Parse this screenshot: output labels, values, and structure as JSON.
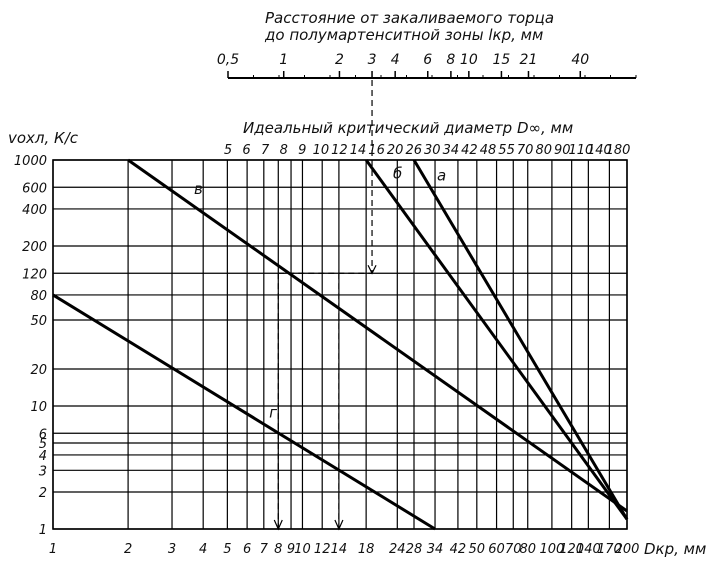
{
  "chart_data": {
    "type": "line",
    "top_scale_title_line1": "Расстояние от закаливаемого торца",
    "top_scale_title_line2": "до полумартенситной зоны lкр, мм",
    "top_scale_ticks": [
      "0,5",
      "1",
      "2",
      "3",
      "4",
      "6",
      "8",
      "10",
      "15",
      "21",
      "40"
    ],
    "ideal_title": "Идеальный критический диаметр D∞, мм",
    "ideal_ticks": [
      "5",
      "6",
      "7",
      "8",
      "9",
      "10",
      "12",
      "14",
      "16",
      "20",
      "26",
      "30",
      "34",
      "42",
      "48",
      "55",
      "70",
      "80",
      "90",
      "110",
      "140",
      "180"
    ],
    "ylabel": "vохл, К/с",
    "xlabel": "Dкр, мм",
    "x_ticks": [
      "1",
      "2",
      "3",
      "4",
      "5",
      "6",
      "7",
      "8",
      "9",
      "10",
      "12",
      "14",
      "18",
      "24",
      "28",
      "34",
      "42",
      "50",
      "60",
      "70",
      "80",
      "100",
      "120",
      "140",
      "170",
      "200"
    ],
    "y_ticks": [
      "1",
      "2",
      "3",
      "4",
      "5",
      "6",
      "10",
      "20",
      "50",
      "80",
      "120",
      "200",
      "400",
      "600",
      "1000"
    ],
    "xlim": [
      1,
      200
    ],
    "ylim": [
      1,
      1000
    ],
    "x_scale": "log",
    "y_scale": "log",
    "grid": true,
    "series": [
      {
        "name": "а",
        "points": [
          [
            28,
            1000
          ],
          [
            200,
            1.2
          ]
        ]
      },
      {
        "name": "б",
        "points": [
          [
            18,
            1000
          ],
          [
            200,
            1.2
          ]
        ]
      },
      {
        "name": "в",
        "points": [
          [
            2,
            1000
          ],
          [
            200,
            1.4
          ]
        ]
      },
      {
        "name": "г",
        "points": [
          [
            1,
            80
          ],
          [
            34,
            1
          ]
        ]
      }
    ],
    "annotations": {
      "horizontal_level": 120,
      "arrow_top_x": 3,
      "arrow_x_values": [
        8,
        14
      ]
    }
  }
}
